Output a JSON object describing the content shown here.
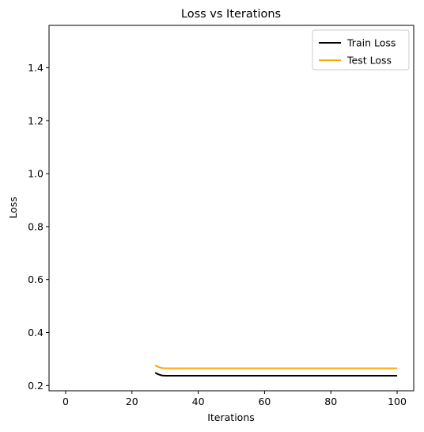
{
  "chart_data": {
    "type": "line",
    "title": "Loss vs Iterations",
    "xlabel": "Iterations",
    "ylabel": "Loss",
    "xlim": [
      -5,
      105
    ],
    "ylim": [
      0.18,
      1.56
    ],
    "x_ticks": [
      0,
      20,
      40,
      60,
      80,
      100
    ],
    "x_tick_labels": [
      "0",
      "20",
      "40",
      "60",
      "80",
      "100"
    ],
    "y_ticks": [
      0.2,
      0.4,
      0.6,
      0.8,
      1.0,
      1.2,
      1.4
    ],
    "y_tick_labels": [
      "0.2",
      "0.4",
      "0.6",
      "0.8",
      "1.0",
      "1.2",
      "1.4"
    ],
    "grid": false,
    "legend_position": "top-right",
    "series": [
      {
        "name": "Train Loss",
        "color": "#000000",
        "x": [
          27,
          28,
          29,
          30,
          40,
          50,
          60,
          70,
          80,
          90,
          100
        ],
        "y": [
          0.248,
          0.242,
          0.238,
          0.237,
          0.237,
          0.237,
          0.237,
          0.237,
          0.237,
          0.237,
          0.237
        ]
      },
      {
        "name": "Test Loss",
        "color": "#ffa500",
        "x": [
          27,
          28,
          29,
          30,
          40,
          50,
          60,
          70,
          80,
          90,
          100
        ],
        "y": [
          0.276,
          0.27,
          0.266,
          0.265,
          0.265,
          0.265,
          0.265,
          0.265,
          0.265,
          0.265,
          0.265
        ]
      }
    ]
  }
}
